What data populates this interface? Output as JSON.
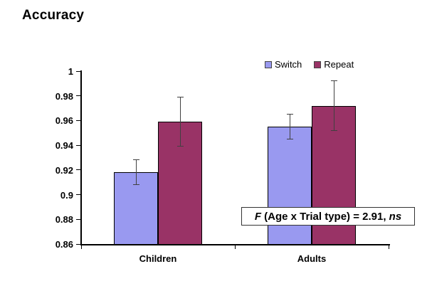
{
  "chart_data": {
    "type": "bar",
    "title": "Accuracy",
    "categories": [
      "Children",
      "Adults"
    ],
    "series": [
      {
        "name": "Switch",
        "color": "#9999F0",
        "values": [
          0.918,
          0.955
        ],
        "errors": [
          0.01,
          0.01
        ]
      },
      {
        "name": "Repeat",
        "color": "#993366",
        "values": [
          0.959,
          0.972
        ],
        "errors": [
          0.02,
          0.02
        ]
      }
    ],
    "ylabel": "",
    "xlabel": "",
    "ylim": [
      0.86,
      1.0
    ],
    "ytick_step": 0.02,
    "ytick_labels": [
      "1",
      "0.98",
      "0.96",
      "0.94",
      "0.92",
      "0.9",
      "0.88",
      "0.86"
    ],
    "grid": false,
    "legend_position": "top-right",
    "error_bar_color": "#404040",
    "bar_border_color": "#000000"
  },
  "annotation": {
    "f": "F",
    "body": " (Age x Trial type) = 2.91, ",
    "ns": "ns"
  }
}
